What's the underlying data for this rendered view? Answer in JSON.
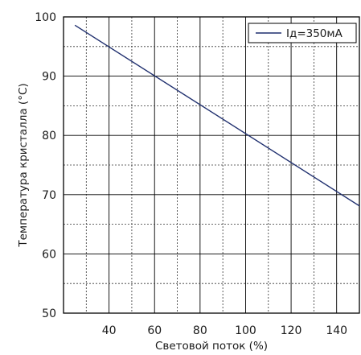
{
  "chart_data": {
    "type": "line",
    "xlabel": "Световой поток (%)",
    "ylabel": "Температура кристалла (°С)",
    "xlim": [
      20,
      150
    ],
    "ylim": [
      50,
      100
    ],
    "x_ticks": [
      40,
      60,
      80,
      100,
      120,
      140
    ],
    "y_ticks": [
      50,
      60,
      70,
      80,
      90,
      100
    ],
    "grid": true,
    "legend_position": "top-right",
    "series": [
      {
        "name": "Iд=350мА",
        "color": "#1f2f6e",
        "x": [
          25,
          150
        ],
        "y": [
          98.6,
          68.1
        ]
      }
    ]
  }
}
